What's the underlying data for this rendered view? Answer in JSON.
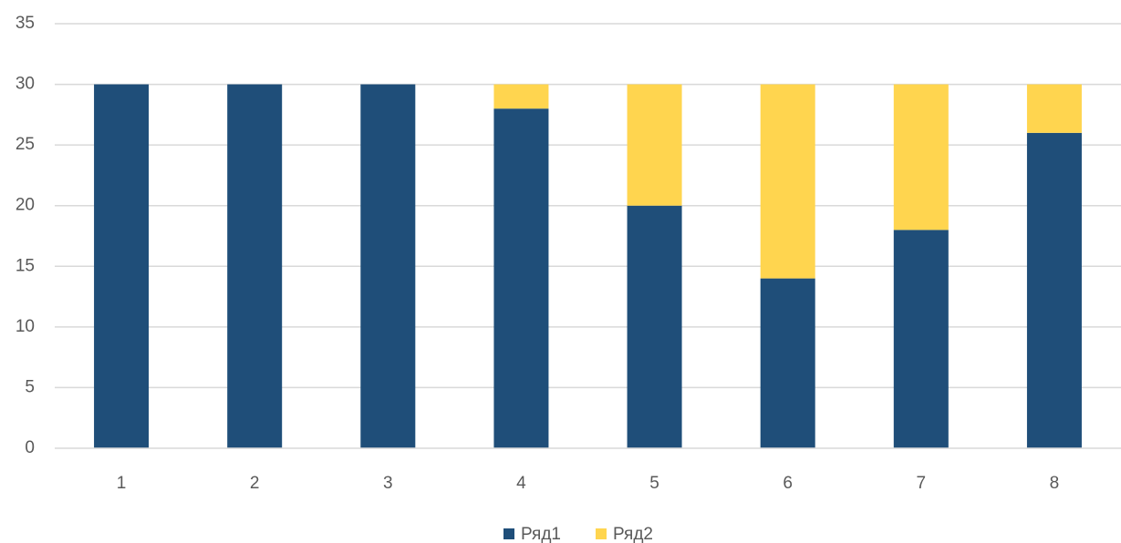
{
  "chart_data": {
    "type": "bar",
    "stacked": true,
    "title": "",
    "xlabel": "",
    "ylabel": "",
    "categories": [
      "1",
      "2",
      "3",
      "4",
      "5",
      "6",
      "7",
      "8"
    ],
    "series": [
      {
        "name": "Ряд1",
        "color": "#1f4e79",
        "values": [
          30,
          30,
          30,
          28,
          20,
          14,
          18,
          26
        ]
      },
      {
        "name": "Ряд2",
        "color": "#ffd54f",
        "values": [
          0,
          0,
          0,
          2,
          10,
          16,
          12,
          4
        ]
      }
    ],
    "ylim": [
      0,
      35
    ],
    "yticks": [
      "0",
      "5",
      "10",
      "15",
      "20",
      "25",
      "30",
      "35"
    ],
    "grid": true,
    "legend_position": "bottom"
  }
}
